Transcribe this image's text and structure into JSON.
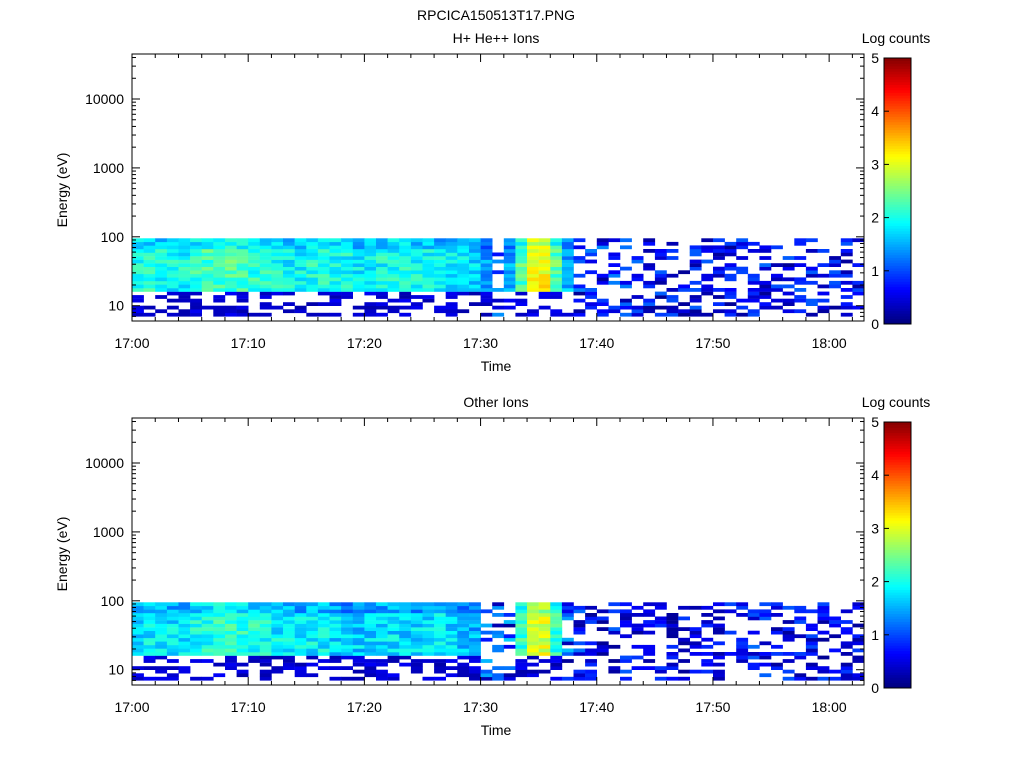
{
  "figure": {
    "title": "RPCICA150513T17.PNG"
  },
  "colorbar": {
    "label": "Log counts",
    "ticks": [
      "0",
      "1",
      "2",
      "3",
      "4",
      "5"
    ],
    "range": [
      0,
      5
    ]
  },
  "chart_data": [
    {
      "type": "heatmap",
      "title": "H+ He++ Ions",
      "xlabel": "Time",
      "ylabel": "Energy (eV)",
      "xlim": [
        "17:00",
        "18:03"
      ],
      "ylim": [
        6,
        45000
      ],
      "yscale": "log",
      "xticks": [
        "17:00",
        "17:10",
        "17:20",
        "17:30",
        "17:40",
        "17:50",
        "18:00"
      ],
      "yticks": [
        "10",
        "100",
        "1000",
        "10000"
      ],
      "colorbar_label": "Log counts",
      "colorbar_range": [
        0,
        5
      ],
      "energy_range_eV": [
        7,
        95
      ],
      "intensity_profile_log_counts": [
        {
          "time": "17:00",
          "level": 1.9
        },
        {
          "time": "17:02",
          "level": 2.0
        },
        {
          "time": "17:04",
          "level": 1.8
        },
        {
          "time": "17:06",
          "level": 2.1
        },
        {
          "time": "17:08",
          "level": 2.2
        },
        {
          "time": "17:10",
          "level": 2.1
        },
        {
          "time": "17:12",
          "level": 1.9
        },
        {
          "time": "17:14",
          "level": 1.8
        },
        {
          "time": "17:16",
          "level": 2.0
        },
        {
          "time": "17:18",
          "level": 1.9
        },
        {
          "time": "17:20",
          "level": 1.8
        },
        {
          "time": "17:22",
          "level": 1.9
        },
        {
          "time": "17:24",
          "level": 1.9
        },
        {
          "time": "17:26",
          "level": 1.8
        },
        {
          "time": "17:28",
          "level": 1.8
        },
        {
          "time": "17:30",
          "level": 1.6
        },
        {
          "time": "17:32",
          "level": 1.0
        },
        {
          "time": "17:35",
          "level": 3.5
        },
        {
          "time": "17:38",
          "level": 1.0
        },
        {
          "time": "17:42",
          "level": 0.9
        },
        {
          "time": "17:46",
          "level": 0.7
        },
        {
          "time": "17:50",
          "level": 0.7
        },
        {
          "time": "17:54",
          "level": 0.8
        },
        {
          "time": "17:58",
          "level": 0.7
        },
        {
          "time": "18:02",
          "level": 0.7
        }
      ]
    },
    {
      "type": "heatmap",
      "title": "Other Ions",
      "xlabel": "Time",
      "ylabel": "Energy (eV)",
      "xlim": [
        "17:00",
        "18:03"
      ],
      "ylim": [
        6,
        45000
      ],
      "yscale": "log",
      "xticks": [
        "17:00",
        "17:10",
        "17:20",
        "17:30",
        "17:40",
        "17:50",
        "18:00"
      ],
      "yticks": [
        "10",
        "100",
        "1000",
        "10000"
      ],
      "colorbar_label": "Log counts",
      "colorbar_range": [
        0,
        5
      ],
      "energy_range_eV": [
        7,
        95
      ],
      "intensity_profile_log_counts": [
        {
          "time": "17:00",
          "level": 1.7
        },
        {
          "time": "17:02",
          "level": 1.8
        },
        {
          "time": "17:04",
          "level": 1.7
        },
        {
          "time": "17:06",
          "level": 1.9
        },
        {
          "time": "17:08",
          "level": 2.1
        },
        {
          "time": "17:10",
          "level": 2.0
        },
        {
          "time": "17:12",
          "level": 1.8
        },
        {
          "time": "17:14",
          "level": 1.7
        },
        {
          "time": "17:16",
          "level": 1.8
        },
        {
          "time": "17:18",
          "level": 1.6
        },
        {
          "time": "17:20",
          "level": 1.6
        },
        {
          "time": "17:22",
          "level": 1.7
        },
        {
          "time": "17:24",
          "level": 1.6
        },
        {
          "time": "17:26",
          "level": 1.7
        },
        {
          "time": "17:28",
          "level": 1.6
        },
        {
          "time": "17:30",
          "level": 1.4
        },
        {
          "time": "17:32",
          "level": 0.9
        },
        {
          "time": "17:35",
          "level": 3.3
        },
        {
          "time": "17:38",
          "level": 0.8
        },
        {
          "time": "17:42",
          "level": 0.7
        },
        {
          "time": "17:46",
          "level": 0.5
        },
        {
          "time": "17:50",
          "level": 0.5
        },
        {
          "time": "17:54",
          "level": 0.8
        },
        {
          "time": "17:58",
          "level": 0.6
        },
        {
          "time": "18:02",
          "level": 0.6
        }
      ]
    }
  ]
}
